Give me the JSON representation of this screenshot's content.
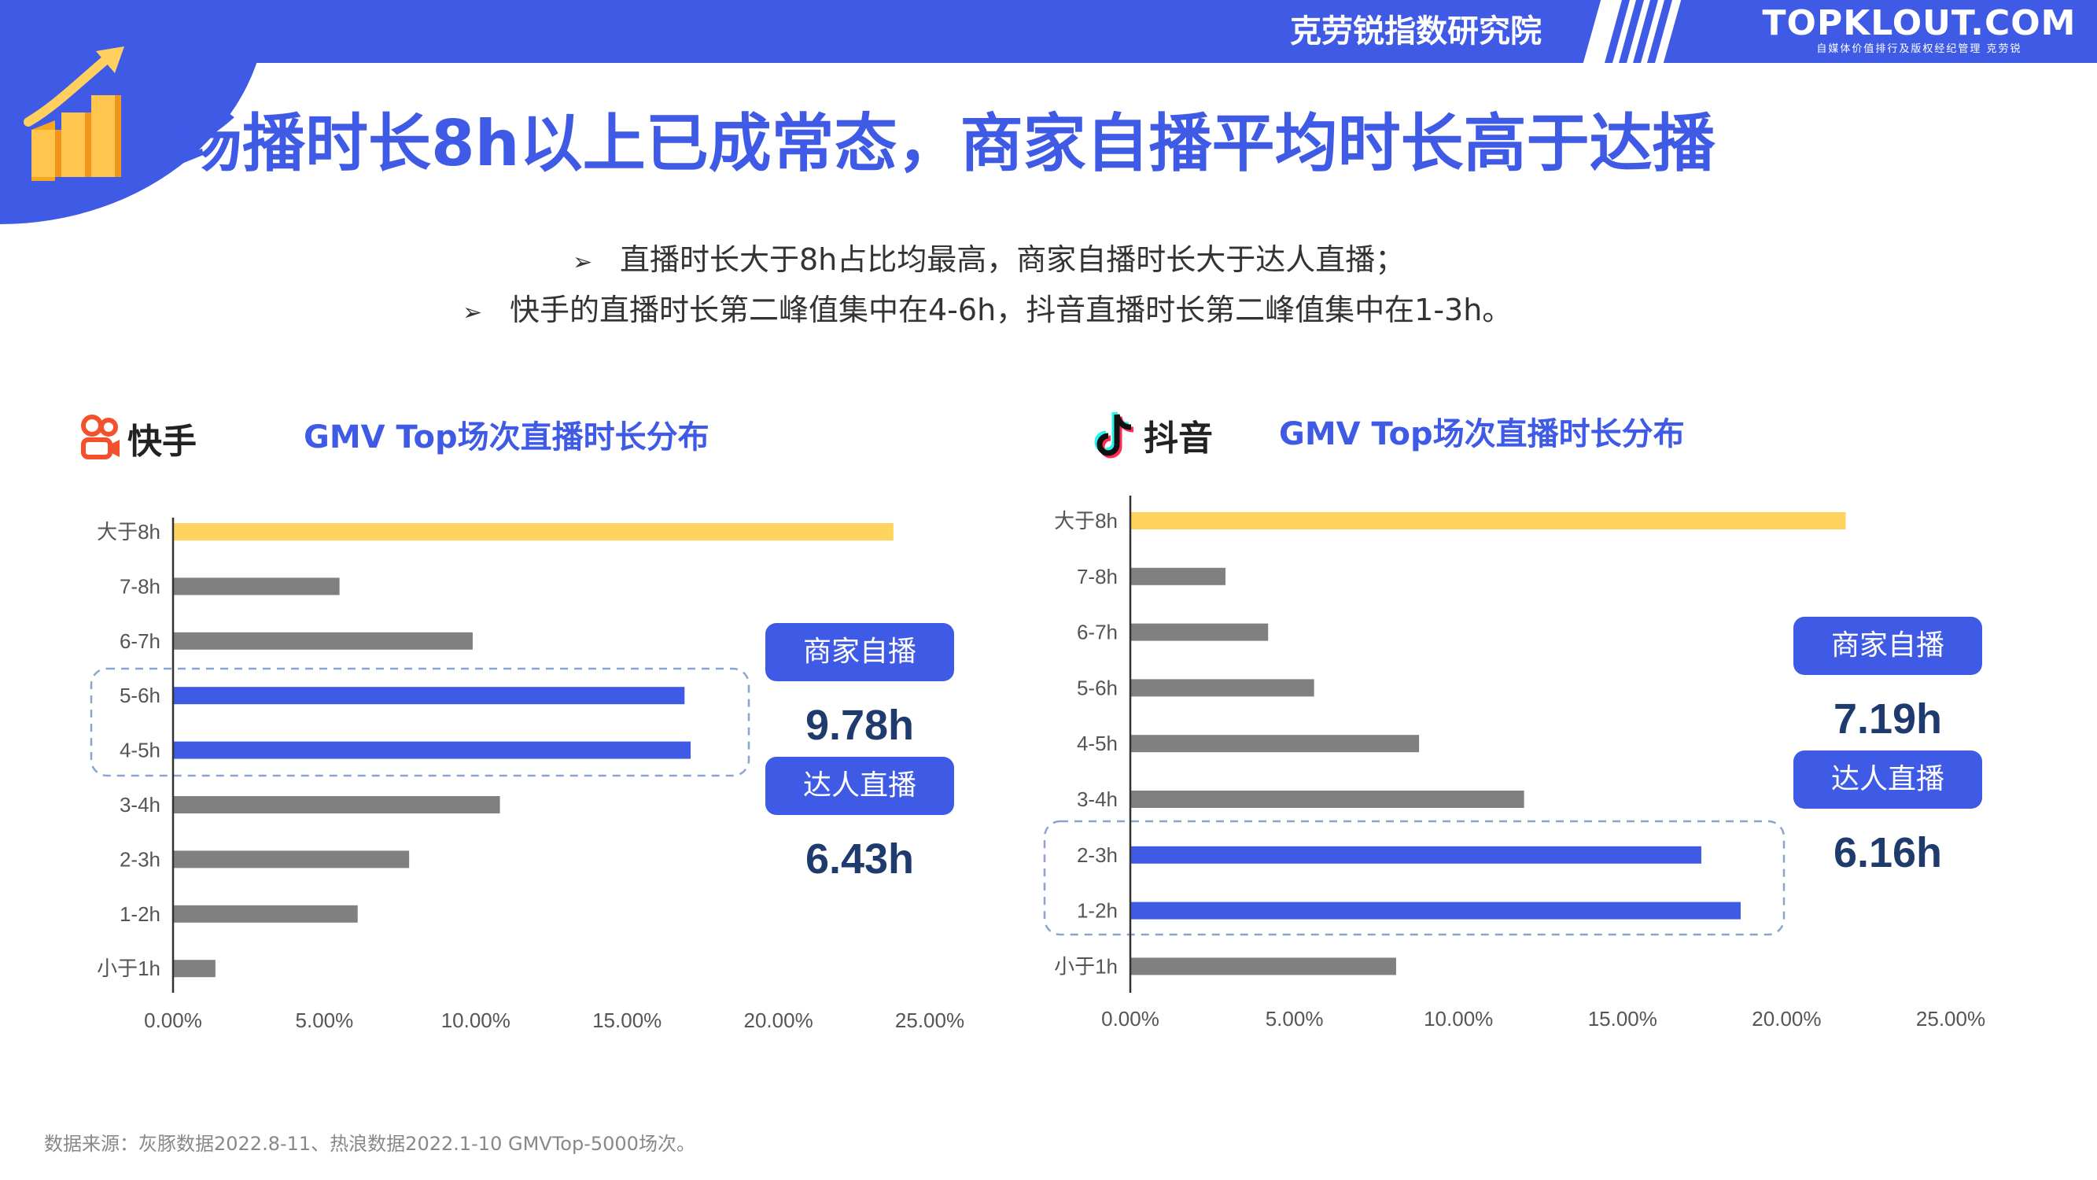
{
  "header": {
    "org": "克劳锐指数研究院",
    "brand": "TOPKLOUT.COM",
    "brand_sub": "自媒体价值排行及版权经纪管理 克劳锐"
  },
  "title": "场播时长8h以上已成常态，商家自播平均时长高于达播",
  "bullets": [
    "直播时长大于8h占比均最高，商家自播时长大于达人直播；",
    "快手的直播时长第二峰值集中在4-6h，抖音直播时长第二峰值集中在1-3h。"
  ],
  "bullet_marker": "➢",
  "colors": {
    "accent": "#3f5be6",
    "highlight": "#ffd45e",
    "bar": "#808080",
    "value_text": "#1f3b6e"
  },
  "kuaishou": {
    "platform": "快手",
    "platform_icon": "kuaishou-logo-icon",
    "merchant_label": "商家自播",
    "merchant_value": "9.78h",
    "influencer_label": "达人直播",
    "influencer_value": "6.43h"
  },
  "douyin": {
    "platform": "抖音",
    "platform_icon": "douyin-logo-icon",
    "merchant_label": "商家自播",
    "merchant_value": "7.19h",
    "influencer_label": "达人直播",
    "influencer_value": "6.16h"
  },
  "chart_data": [
    {
      "type": "bar",
      "orientation": "horizontal",
      "title": "GMV Top场次直播时长分布",
      "categories": [
        "大于8h",
        "7-8h",
        "6-7h",
        "5-6h",
        "4-5h",
        "3-4h",
        "2-3h",
        "1-2h",
        "小于1h"
      ],
      "values": [
        23.8,
        5.5,
        9.9,
        16.9,
        17.1,
        10.8,
        7.8,
        6.1,
        1.4
      ],
      "highlight_top": "大于8h",
      "highlight_boxed": [
        "5-6h",
        "4-5h"
      ],
      "xlim": [
        0,
        25
      ],
      "xticks": [
        "0.00%",
        "5.00%",
        "10.00%",
        "15.00%",
        "20.00%",
        "25.00%"
      ],
      "grid": false
    },
    {
      "type": "bar",
      "orientation": "horizontal",
      "title": "GMV Top场次直播时长分布",
      "categories": [
        "大于8h",
        "7-8h",
        "6-7h",
        "5-6h",
        "4-5h",
        "3-4h",
        "2-3h",
        "1-2h",
        "小于1h"
      ],
      "values": [
        21.8,
        2.9,
        4.2,
        5.6,
        8.8,
        12.0,
        17.4,
        18.6,
        8.1
      ],
      "highlight_top": "大于8h",
      "highlight_boxed": [
        "2-3h",
        "1-2h"
      ],
      "xlim": [
        0,
        25
      ],
      "xticks": [
        "0.00%",
        "5.00%",
        "10.00%",
        "15.00%",
        "20.00%",
        "25.00%"
      ],
      "grid": false
    }
  ],
  "source": "数据来源：灰豚数据2022.8-11、热浪数据2022.1-10 GMVTop-5000场次。"
}
